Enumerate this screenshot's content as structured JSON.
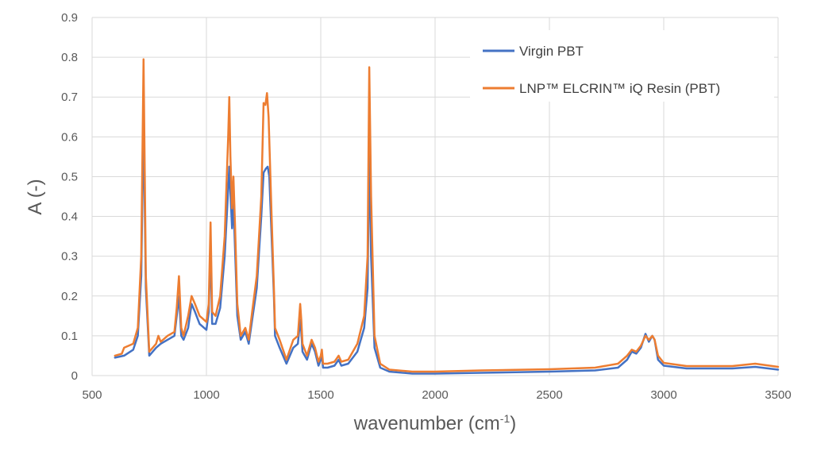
{
  "chart_data": {
    "type": "line",
    "title": "",
    "xlabel": "wavenumber (cm",
    "xlabel_sup": "-1",
    "xlabel_end": ")",
    "ylabel": "A (-)",
    "xlim": [
      500,
      3500
    ],
    "ylim": [
      0,
      0.9
    ],
    "x_ticks": [
      500,
      1000,
      1500,
      2000,
      2500,
      3000,
      3500
    ],
    "y_ticks": [
      "0",
      "0.1",
      "0.2",
      "0.3",
      "0.4",
      "0.5",
      "0.6",
      "0.7",
      "0.8",
      "0.9"
    ],
    "grid": true,
    "legend_position": "top-right",
    "series": [
      {
        "name": "Virgin PBT",
        "color": "#4472c4",
        "x": [
          600,
          640,
          680,
          700,
          715,
          725,
          735,
          750,
          780,
          800,
          830,
          860,
          870,
          880,
          890,
          900,
          920,
          935,
          950,
          970,
          1000,
          1010,
          1018,
          1025,
          1040,
          1060,
          1080,
          1095,
          1100,
          1105,
          1112,
          1118,
          1125,
          1135,
          1150,
          1170,
          1185,
          1200,
          1220,
          1240,
          1250,
          1260,
          1268,
          1275,
          1285,
          1295,
          1300,
          1320,
          1350,
          1380,
          1400,
          1410,
          1415,
          1420,
          1440,
          1460,
          1475,
          1490,
          1500,
          1505,
          1510,
          1530,
          1560,
          1578,
          1590,
          1620,
          1660,
          1690,
          1705,
          1712,
          1720,
          1735,
          1760,
          1800,
          1900,
          2000,
          2200,
          2500,
          2700,
          2800,
          2840,
          2860,
          2880,
          2900,
          2920,
          2935,
          2950,
          2960,
          2975,
          3000,
          3100,
          3300,
          3400,
          3500
        ],
        "y": [
          0.045,
          0.05,
          0.065,
          0.1,
          0.25,
          0.65,
          0.22,
          0.05,
          0.07,
          0.08,
          0.09,
          0.1,
          0.15,
          0.2,
          0.1,
          0.09,
          0.12,
          0.18,
          0.16,
          0.13,
          0.115,
          0.16,
          0.33,
          0.13,
          0.13,
          0.17,
          0.3,
          0.47,
          0.525,
          0.46,
          0.37,
          0.44,
          0.32,
          0.15,
          0.09,
          0.11,
          0.08,
          0.14,
          0.22,
          0.4,
          0.51,
          0.52,
          0.525,
          0.5,
          0.35,
          0.2,
          0.1,
          0.07,
          0.03,
          0.07,
          0.08,
          0.14,
          0.11,
          0.06,
          0.04,
          0.08,
          0.06,
          0.025,
          0.04,
          0.05,
          0.02,
          0.02,
          0.025,
          0.04,
          0.025,
          0.03,
          0.06,
          0.12,
          0.22,
          0.57,
          0.3,
          0.07,
          0.02,
          0.01,
          0.005,
          0.005,
          0.007,
          0.01,
          0.013,
          0.02,
          0.04,
          0.06,
          0.055,
          0.07,
          0.105,
          0.085,
          0.1,
          0.09,
          0.04,
          0.025,
          0.018,
          0.018,
          0.022,
          0.015
        ]
      },
      {
        "name": "LNP™ ELCRIN™ iQ Resin (PBT)",
        "color": "#ed7d31",
        "x": [
          600,
          630,
          640,
          680,
          700,
          715,
          725,
          735,
          750,
          780,
          790,
          800,
          830,
          860,
          870,
          880,
          890,
          900,
          920,
          935,
          950,
          970,
          1000,
          1010,
          1018,
          1025,
          1040,
          1060,
          1080,
          1095,
          1100,
          1105,
          1112,
          1118,
          1125,
          1135,
          1150,
          1170,
          1185,
          1200,
          1220,
          1240,
          1250,
          1258,
          1265,
          1272,
          1285,
          1295,
          1300,
          1320,
          1350,
          1380,
          1400,
          1410,
          1415,
          1420,
          1440,
          1460,
          1475,
          1490,
          1500,
          1505,
          1510,
          1530,
          1560,
          1578,
          1590,
          1620,
          1660,
          1690,
          1705,
          1712,
          1720,
          1735,
          1760,
          1800,
          1900,
          2000,
          2200,
          2500,
          2700,
          2800,
          2840,
          2860,
          2880,
          2900,
          2920,
          2935,
          2950,
          2960,
          2975,
          3000,
          3100,
          3300,
          3400,
          3500
        ],
        "y": [
          0.05,
          0.055,
          0.07,
          0.08,
          0.12,
          0.3,
          0.795,
          0.25,
          0.06,
          0.08,
          0.1,
          0.085,
          0.1,
          0.11,
          0.17,
          0.25,
          0.12,
          0.1,
          0.15,
          0.2,
          0.18,
          0.15,
          0.135,
          0.18,
          0.385,
          0.16,
          0.15,
          0.2,
          0.35,
          0.6,
          0.7,
          0.55,
          0.42,
          0.5,
          0.38,
          0.18,
          0.1,
          0.12,
          0.09,
          0.16,
          0.25,
          0.45,
          0.685,
          0.68,
          0.71,
          0.65,
          0.4,
          0.22,
          0.12,
          0.09,
          0.04,
          0.09,
          0.1,
          0.18,
          0.14,
          0.08,
          0.05,
          0.09,
          0.07,
          0.035,
          0.05,
          0.065,
          0.03,
          0.03,
          0.035,
          0.05,
          0.035,
          0.04,
          0.08,
          0.15,
          0.3,
          0.775,
          0.45,
          0.1,
          0.03,
          0.015,
          0.01,
          0.01,
          0.013,
          0.016,
          0.02,
          0.03,
          0.05,
          0.065,
          0.06,
          0.075,
          0.1,
          0.09,
          0.1,
          0.09,
          0.05,
          0.032,
          0.024,
          0.024,
          0.03,
          0.022
        ]
      }
    ]
  }
}
